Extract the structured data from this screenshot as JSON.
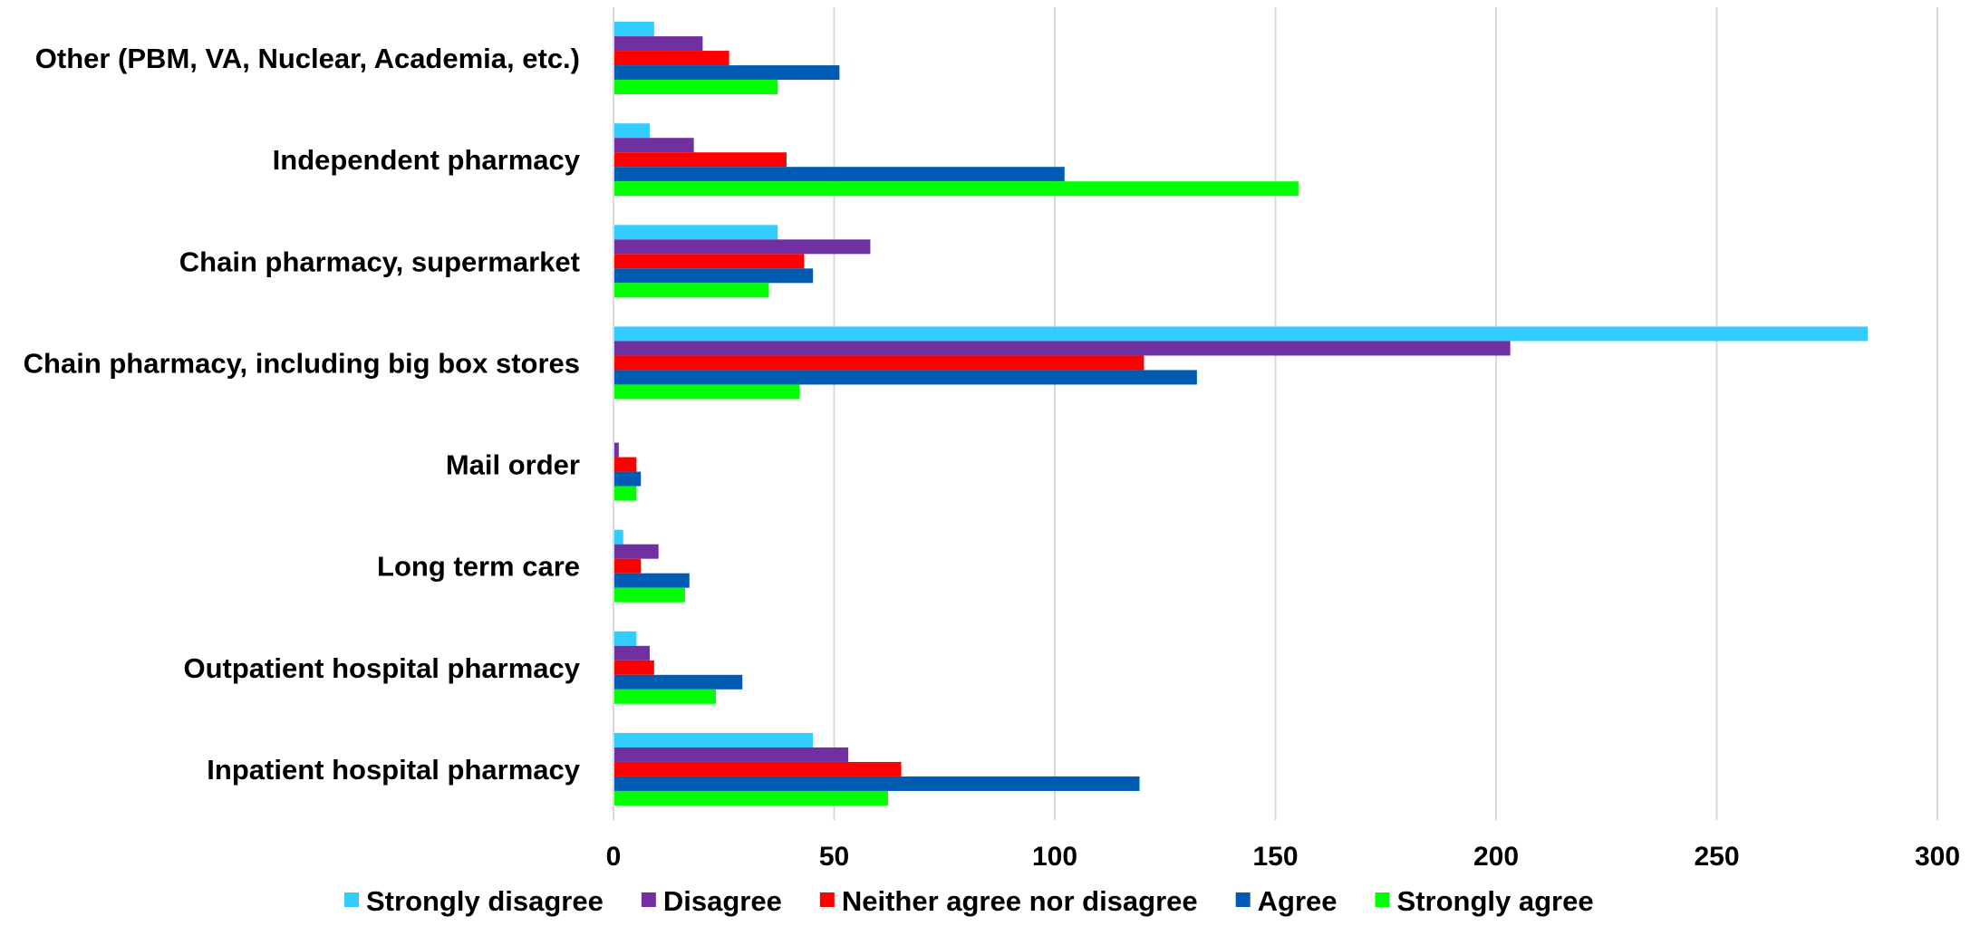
{
  "chart_data": {
    "type": "bar",
    "orientation": "horizontal",
    "categories": [
      "Other (PBM, VA, Nuclear, Academia, etc.)",
      "Independent pharmacy",
      "Chain pharmacy, supermarket",
      "Chain pharmacy, including big box stores",
      "Mail order",
      "Long term care",
      "Outpatient hospital pharmacy",
      "Inpatient hospital pharmacy"
    ],
    "series": [
      {
        "name": "Strongly disagree",
        "color": "#33ccff",
        "values": [
          9,
          8,
          37,
          284,
          0,
          2,
          5,
          45
        ]
      },
      {
        "name": "Disagree",
        "color": "#7030a0",
        "values": [
          20,
          18,
          58,
          203,
          1,
          10,
          8,
          53
        ]
      },
      {
        "name": "Neither agree nor disagree",
        "color": "#ff0000",
        "values": [
          26,
          39,
          43,
          120,
          5,
          6,
          9,
          65
        ]
      },
      {
        "name": "Agree",
        "color": "#005cb2",
        "values": [
          51,
          102,
          45,
          132,
          6,
          17,
          29,
          119
        ]
      },
      {
        "name": "Strongly agree",
        "color": "#00ff00",
        "values": [
          37,
          155,
          35,
          42,
          5,
          16,
          23,
          62
        ]
      }
    ],
    "title": "",
    "xlabel": "",
    "ylabel": "",
    "xlim": [
      0,
      300
    ],
    "xticks": [
      0,
      50,
      100,
      150,
      200,
      250,
      300
    ],
    "grid": true,
    "legend": "bottom"
  }
}
